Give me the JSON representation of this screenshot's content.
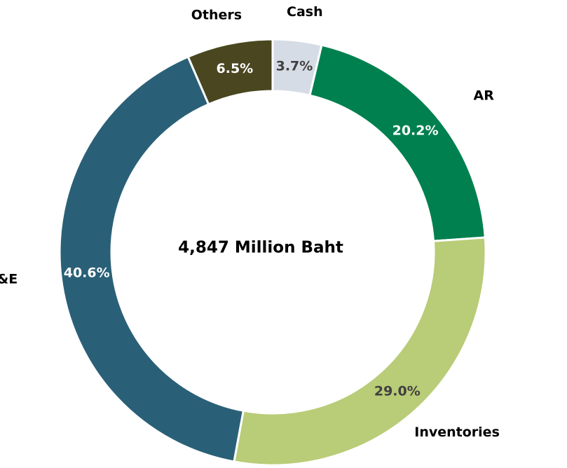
{
  "chart_data": {
    "type": "donut",
    "center_label": "4,847 Million Baht",
    "categories": [
      "Cash",
      "AR",
      "Inventories",
      "PP&E",
      "Others"
    ],
    "values": [
      3.7,
      20.2,
      29.0,
      40.6,
      6.5
    ],
    "value_labels": [
      "3.7%",
      "20.2%",
      "29.0%",
      "40.6%",
      "6.5%"
    ],
    "colors": [
      "#d6dce5",
      "#00804f",
      "#b9cc77",
      "#2a6077",
      "#4a4720"
    ]
  }
}
